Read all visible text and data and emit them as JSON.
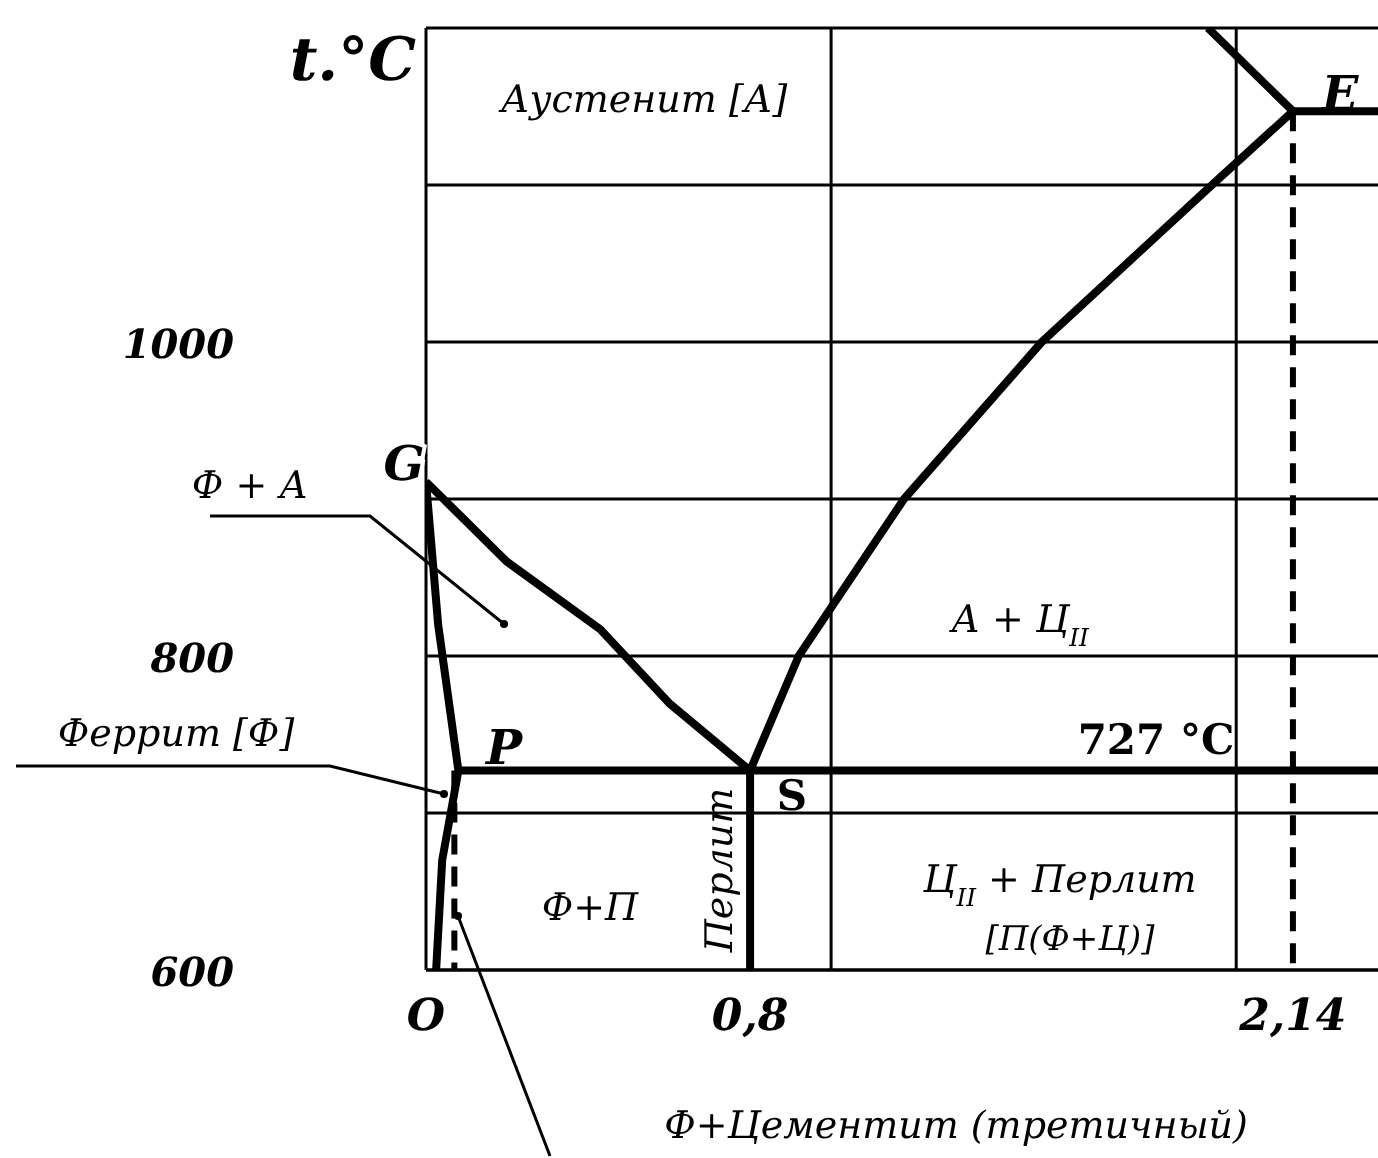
{
  "chart_data": {
    "type": "line",
    "ylabel": "t.°C",
    "xlim": [
      0,
      2.35
    ],
    "ylim": [
      600,
      1200
    ],
    "xticks": [
      {
        "value": 0,
        "label": "O"
      },
      {
        "value": 0.8,
        "label": "0,8"
      },
      {
        "value": 1,
        "label": null
      },
      {
        "value": 2,
        "label": null
      },
      {
        "value": 2.14,
        "label": "2,14"
      }
    ],
    "yticks": [
      600,
      {
        "value": 700,
        "label": null
      },
      800,
      {
        "value": 900,
        "label": null
      },
      1000,
      {
        "value": 1100,
        "label": null
      },
      {
        "value": 1200,
        "label": null
      }
    ],
    "grid": true,
    "marker": "none",
    "series": [
      {
        "color": "#000000",
        "line_style": "solid",
        "x": [
          0,
          0.2,
          0.43,
          0.6,
          0.8,
          0.92,
          1.18,
          1.52,
          1.94,
          2.14,
          2.35
        ],
        "values": [
          911,
          860,
          817,
          770,
          727,
          800,
          900,
          1000,
          1100,
          1147,
          1147
        ]
      },
      {
        "color": "#000000",
        "line_style": "solid",
        "x": [
          0,
          0.03,
          0.08,
          0.04,
          0.025
        ],
        "values": [
          911,
          820,
          727,
          670,
          600
        ]
      },
      {
        "color": "#000000",
        "line_style": "solid",
        "x": [
          2.14,
          1.93
        ],
        "values": [
          1147,
          1200
        ]
      },
      {
        "color": "#000000",
        "line_style": "solid",
        "x": [
          0.08,
          2.35
        ],
        "values": [
          727,
          727
        ]
      },
      {
        "color": "#000000",
        "line_style": "solid",
        "x": [
          0.8,
          0.8
        ],
        "values": [
          727,
          600
        ]
      },
      {
        "color": "#000000",
        "line_style": "dashed",
        "x": [
          2.14,
          2.14
        ],
        "values": [
          1147,
          600
        ]
      },
      {
        "color": "#000000",
        "line_style": "dashed",
        "x": [
          0.07,
          0.07
        ],
        "values": [
          727,
          600
        ]
      }
    ],
    "annotations": [
      "Аустенит [А]",
      "Ф + А",
      "Феррит [Ф]",
      "Ф+Цементит (третичный)",
      "А + Ц$_{II}$",
      "Ц$_{II}$ + Перлит",
      "[П(Ф+Ц)]",
      "Ф+П",
      "Перлит",
      "727 °C",
      "G",
      "P",
      "S",
      "E"
    ]
  }
}
